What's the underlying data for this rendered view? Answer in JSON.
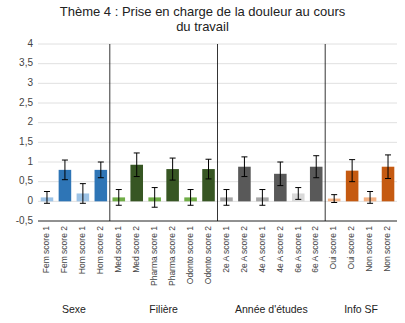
{
  "chart_data": {
    "type": "bar",
    "title": "Thème 4 : Prise en charge de la douleur au cours\ndu travail",
    "categories": [
      "Fem score 1",
      "Fem score 2",
      "Hom score 1",
      "Hom score 2",
      "Med score 1",
      "Med score 2",
      "Pharma score 1",
      "Pharma score 2",
      "Odonto score 1",
      "Odonto score 2",
      "2e A score 1",
      "2e A score 2",
      "4e A score 1",
      "4e A score 2",
      "6e A score 1",
      "6e A score 2",
      "Oui score 1",
      "Oui score 2",
      "Non score 1",
      "Non score 2"
    ],
    "values": [
      0.1,
      0.8,
      0.2,
      0.8,
      0.1,
      0.93,
      0.1,
      0.82,
      0.1,
      0.82,
      0.1,
      0.88,
      0.1,
      0.7,
      0.2,
      0.88,
      0.07,
      0.78,
      0.1,
      0.88
    ],
    "errors": [
      0.15,
      0.25,
      0.25,
      0.2,
      0.2,
      0.3,
      0.25,
      0.28,
      0.2,
      0.25,
      0.2,
      0.25,
      0.2,
      0.3,
      0.15,
      0.28,
      0.1,
      0.28,
      0.15,
      0.3
    ],
    "colors": [
      "#9dc3e6",
      "#2e75b6",
      "#9dc3e6",
      "#2e75b6",
      "#70ad47",
      "#375623",
      "#70ad47",
      "#375623",
      "#70ad47",
      "#375623",
      "#a6a6a6",
      "#595959",
      "#a6a6a6",
      "#595959",
      "#d9d9d9",
      "#595959",
      "#f4b183",
      "#c55a11",
      "#f4b183",
      "#c55a11"
    ],
    "groups": [
      {
        "label": "Sexe",
        "categories": [
          "Fem score 1",
          "Fem score 2",
          "Hom score 1",
          "Hom score 2"
        ]
      },
      {
        "label": "Filière",
        "categories": [
          "Med score 1",
          "Med score 2",
          "Pharma score 1",
          "Pharma score 2",
          "Odonto score 1",
          "Odonto score 2"
        ]
      },
      {
        "label": "Année d'études",
        "categories": [
          "2e A score 1",
          "2e A score 2",
          "4e A score 1",
          "4e A score 2",
          "6e A score 1",
          "6e A score 2"
        ]
      },
      {
        "label": "Info SF",
        "categories": [
          "Oui score 1",
          "Oui score 2",
          "Non score 1",
          "Non score 2"
        ]
      }
    ],
    "ylim": [
      -0.5,
      4
    ],
    "yticks": [
      {
        "value": -0.5,
        "label": "-0,5"
      },
      0,
      {
        "value": 0.5,
        "label": "0,5"
      },
      1,
      {
        "value": 1.5,
        "label": "1,5"
      },
      2,
      {
        "value": 2.5,
        "label": "2,5"
      },
      3,
      {
        "value": 3.5,
        "label": "3,5"
      },
      4
    ],
    "grid": true
  }
}
